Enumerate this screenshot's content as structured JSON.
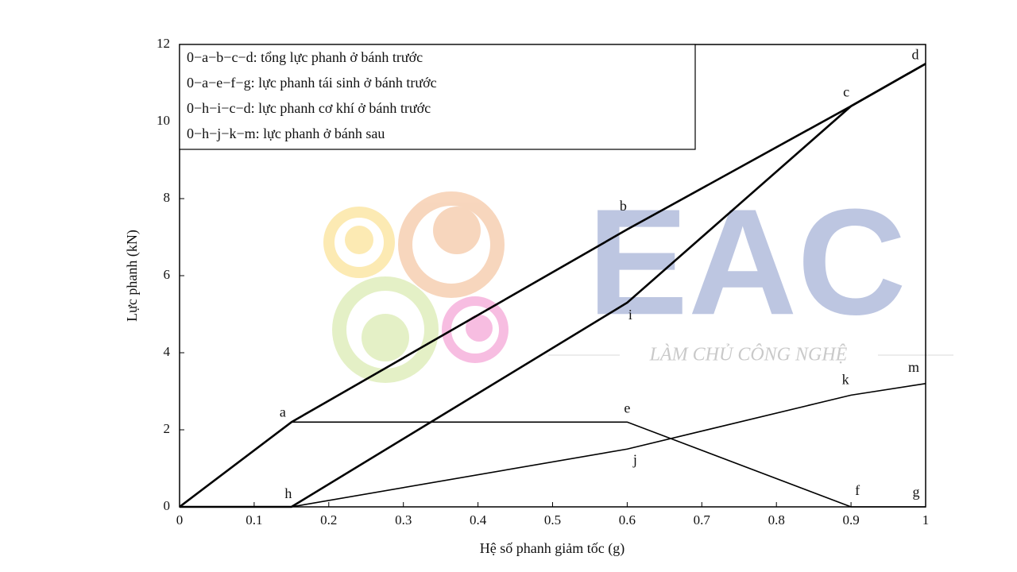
{
  "chart_data": {
    "type": "line",
    "x_label": "Hệ số phanh giảm tốc (g)",
    "y_label": "Lực phanh (kN)",
    "x": [
      0,
      0.15,
      0.6,
      0.9,
      1
    ],
    "series": [
      {
        "name": "0−a−b−c−d: tổng lực phanh ở bánh trước",
        "color": "#000000",
        "width": 2.6,
        "values": [
          0,
          2.2,
          7.2,
          10.4,
          11.5
        ]
      },
      {
        "name": "0−a−e−f−g: lực phanh tái sinh ở bánh trước",
        "color": "#000000",
        "width": 1.6,
        "values": [
          0,
          2.2,
          2.2,
          0,
          0
        ]
      },
      {
        "name": "0−h−i−c−d: lực phanh cơ khí ở bánh trước",
        "color": "#000000",
        "width": 2.6,
        "values": [
          0,
          0,
          5.3,
          10.4,
          11.5
        ]
      },
      {
        "name": "0−h−j−k−m: lực phanh ở bánh sau",
        "color": "#000000",
        "width": 1.6,
        "values": [
          0,
          0,
          1.5,
          2.9,
          3.2
        ]
      }
    ],
    "annotations": [
      {
        "text": "a",
        "x": 0.15,
        "y": 2.2
      },
      {
        "text": "b",
        "x": 0.6,
        "y": 7.2
      },
      {
        "text": "c",
        "x": 0.9,
        "y": 10.4
      },
      {
        "text": "d",
        "x": 1,
        "y": 11.5
      },
      {
        "text": "e",
        "x": 0.6,
        "y": 2.2
      },
      {
        "text": "f",
        "x": 0.9,
        "y": 0
      },
      {
        "text": "g",
        "x": 1,
        "y": 0
      },
      {
        "text": "h",
        "x": 0.15,
        "y": 0
      },
      {
        "text": "i",
        "x": 0.6,
        "y": 5.3
      },
      {
        "text": "j",
        "x": 0.6,
        "y": 1.5
      },
      {
        "text": "k",
        "x": 0.9,
        "y": 2.9
      },
      {
        "text": "m",
        "x": 1,
        "y": 3.2
      }
    ],
    "xlim": [
      0,
      1
    ],
    "xticks": [
      0,
      0.1,
      0.2,
      0.3,
      0.4,
      0.5,
      0.6,
      0.7,
      0.8,
      0.9,
      1
    ],
    "ylim": [
      0,
      12
    ],
    "yticks": [
      0,
      2,
      4,
      6,
      8,
      10,
      12
    ],
    "legend": "upper left",
    "watermark": {
      "logo": "EAC",
      "tagline": "LÀM CHỦ CÔNG NGHỆ"
    }
  }
}
